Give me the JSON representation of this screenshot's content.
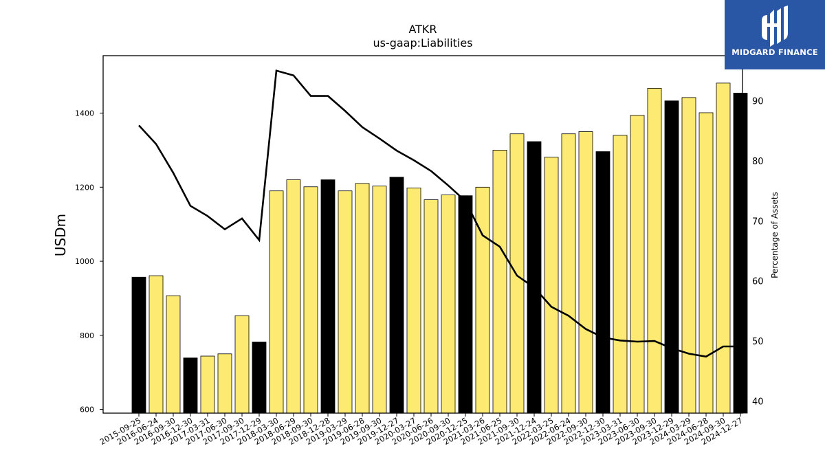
{
  "brand": {
    "name": "MIDGARD FINANCE",
    "icon": "midgard-logo-icon",
    "color": "#2a56a6"
  },
  "chart_data": {
    "type": "bar",
    "title": "ATKR",
    "subtitle": "us-gaap:Liabilities",
    "ylabel": "USDm",
    "y2label": "Percentage of Assets",
    "ylim": [
      590,
      1555
    ],
    "y2lim": [
      38,
      97.5
    ],
    "yticks": [
      600,
      800,
      1000,
      1200,
      1400
    ],
    "y2ticks": [
      40,
      50,
      60,
      70,
      80,
      90
    ],
    "categories": [
      "2015-09-25",
      "2016-06-24",
      "2016-09-30",
      "2016-12-30",
      "2017-03-31",
      "2017-06-30",
      "2017-09-30",
      "2017-12-29",
      "2018-03-30",
      "2018-06-29",
      "2018-09-30",
      "2018-12-28",
      "2019-03-29",
      "2019-06-28",
      "2019-09-30",
      "2019-12-27",
      "2020-03-27",
      "2020-06-26",
      "2020-09-30",
      "2020-12-25",
      "2021-03-26",
      "2021-06-25",
      "2021-09-30",
      "2021-12-24",
      "2022-03-25",
      "2022-06-24",
      "2022-09-30",
      "2022-12-30",
      "2023-03-31",
      "2023-06-30",
      "2023-09-30",
      "2023-12-29",
      "2024-03-29",
      "2024-06-28",
      "2024-09-30",
      "2024-12-27"
    ],
    "series": [
      {
        "type": "bar",
        "values": [
          957,
          961,
          907,
          739,
          744,
          750,
          853,
          782,
          1190,
          1220,
          1201,
          1220,
          1190,
          1210,
          1203,
          1227,
          1198,
          1166,
          1179,
          1177,
          1200,
          1300,
          1344,
          1323,
          1281,
          1344,
          1350,
          1296,
          1340,
          1394,
          1467,
          1433,
          1442,
          1401,
          1481,
          1454
        ],
        "fiscal_year_end": [
          true,
          false,
          false,
          true,
          false,
          false,
          false,
          true,
          false,
          false,
          false,
          true,
          false,
          false,
          false,
          true,
          false,
          false,
          false,
          true,
          false,
          false,
          false,
          true,
          false,
          false,
          false,
          true,
          false,
          false,
          false,
          true,
          false,
          false,
          false,
          true
        ]
      },
      {
        "type": "line",
        "axis": "secondary",
        "values": [
          85.9,
          82.8,
          78.0,
          72.5,
          70.8,
          68.6,
          70.4,
          66.8,
          95.0,
          94.2,
          90.8,
          90.8,
          88.3,
          85.6,
          83.7,
          81.7,
          80.1,
          78.3,
          75.9,
          73.3,
          67.6,
          65.7,
          60.9,
          58.9,
          55.7,
          54.2,
          52.0,
          50.6,
          50.1,
          49.9,
          50.0,
          48.8,
          47.9,
          47.4,
          49.1,
          49.1
        ]
      }
    ],
    "colors": {
      "bar": "#fdea72",
      "bar_highlight": "#000000",
      "line": "#000000"
    },
    "grid": false,
    "legend": "none"
  }
}
